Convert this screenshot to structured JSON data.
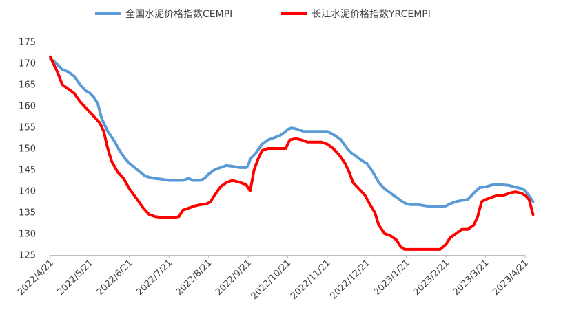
{
  "chart_data": {
    "type": "line",
    "title": "",
    "xlabel": "",
    "ylabel": "",
    "ylim": [
      125,
      175
    ],
    "yticks": [
      125,
      130,
      135,
      140,
      145,
      150,
      155,
      160,
      165,
      170,
      175
    ],
    "grid": false,
    "legend_position": "top",
    "categories": [
      "2022/4/21",
      "2022/5/21",
      "2022/6/21",
      "2022/7/21",
      "2022/8/21",
      "2022/9/21",
      "2022/10/21",
      "2022/11/21",
      "2022/12/21",
      "2023/1/21",
      "2023/2/21",
      "2023/3/21",
      "2023/4/21"
    ],
    "series": [
      {
        "name": "全国水泥价格指数CEMPI",
        "color": "#5b9bd5",
        "values": [
          [
            0.0,
            171.0
          ],
          [
            0.15,
            170.0
          ],
          [
            0.3,
            168.5
          ],
          [
            0.45,
            168.0
          ],
          [
            0.6,
            167.0
          ],
          [
            0.75,
            165.0
          ],
          [
            0.9,
            163.5
          ],
          [
            1.0,
            163.0
          ],
          [
            1.1,
            162.0
          ],
          [
            1.2,
            160.5
          ],
          [
            1.3,
            157.0
          ],
          [
            1.45,
            154.0
          ],
          [
            1.6,
            152.0
          ],
          [
            1.75,
            149.5
          ],
          [
            1.9,
            147.5
          ],
          [
            2.0,
            146.5
          ],
          [
            2.2,
            145.0
          ],
          [
            2.4,
            143.5
          ],
          [
            2.6,
            143.0
          ],
          [
            2.8,
            142.8
          ],
          [
            3.0,
            142.5
          ],
          [
            3.2,
            142.5
          ],
          [
            3.35,
            142.5
          ],
          [
            3.5,
            143.0
          ],
          [
            3.6,
            142.5
          ],
          [
            3.8,
            142.5
          ],
          [
            3.9,
            143.0
          ],
          [
            4.0,
            144.0
          ],
          [
            4.15,
            145.0
          ],
          [
            4.3,
            145.5
          ],
          [
            4.45,
            146.0
          ],
          [
            4.6,
            145.8
          ],
          [
            4.8,
            145.5
          ],
          [
            4.95,
            145.5
          ],
          [
            5.0,
            146.0
          ],
          [
            5.05,
            147.5
          ],
          [
            5.2,
            149.0
          ],
          [
            5.35,
            151.0
          ],
          [
            5.5,
            152.0
          ],
          [
            5.65,
            152.5
          ],
          [
            5.8,
            153.0
          ],
          [
            5.95,
            154.0
          ],
          [
            6.0,
            154.5
          ],
          [
            6.1,
            154.8
          ],
          [
            6.25,
            154.5
          ],
          [
            6.4,
            154.0
          ],
          [
            6.55,
            154.0
          ],
          [
            6.7,
            154.0
          ],
          [
            6.85,
            154.0
          ],
          [
            7.0,
            154.0
          ],
          [
            7.1,
            153.5
          ],
          [
            7.2,
            153.0
          ],
          [
            7.35,
            152.0
          ],
          [
            7.5,
            150.0
          ],
          [
            7.6,
            149.0
          ],
          [
            7.75,
            148.0
          ],
          [
            7.9,
            147.0
          ],
          [
            8.0,
            146.5
          ],
          [
            8.15,
            144.5
          ],
          [
            8.3,
            142.0
          ],
          [
            8.45,
            140.5
          ],
          [
            8.6,
            139.5
          ],
          [
            8.75,
            138.5
          ],
          [
            8.9,
            137.5
          ],
          [
            9.0,
            137.0
          ],
          [
            9.1,
            136.8
          ],
          [
            9.3,
            136.8
          ],
          [
            9.5,
            136.5
          ],
          [
            9.7,
            136.3
          ],
          [
            9.85,
            136.3
          ],
          [
            10.0,
            136.5
          ],
          [
            10.1,
            137.0
          ],
          [
            10.25,
            137.5
          ],
          [
            10.4,
            137.8
          ],
          [
            10.55,
            138.0
          ],
          [
            10.7,
            139.5
          ],
          [
            10.85,
            140.8
          ],
          [
            11.0,
            141.0
          ],
          [
            11.2,
            141.5
          ],
          [
            11.4,
            141.5
          ],
          [
            11.6,
            141.3
          ],
          [
            11.8,
            140.8
          ],
          [
            11.95,
            140.5
          ],
          [
            12.05,
            139.5
          ],
          [
            12.2,
            137.5
          ]
        ]
      },
      {
        "name": "长江水泥价格指数YRCEMPI",
        "color": "#ff0000",
        "values": [
          [
            0.0,
            171.5
          ],
          [
            0.1,
            169.5
          ],
          [
            0.2,
            167.5
          ],
          [
            0.3,
            165.0
          ],
          [
            0.45,
            164.0
          ],
          [
            0.6,
            163.0
          ],
          [
            0.75,
            161.0
          ],
          [
            0.9,
            159.5
          ],
          [
            1.0,
            158.5
          ],
          [
            1.1,
            157.5
          ],
          [
            1.25,
            156.0
          ],
          [
            1.35,
            154.0
          ],
          [
            1.45,
            150.0
          ],
          [
            1.55,
            147.0
          ],
          [
            1.7,
            144.5
          ],
          [
            1.85,
            143.0
          ],
          [
            2.0,
            140.5
          ],
          [
            2.2,
            138.0
          ],
          [
            2.35,
            136.0
          ],
          [
            2.5,
            134.5
          ],
          [
            2.65,
            134.0
          ],
          [
            2.8,
            133.8
          ],
          [
            3.0,
            133.8
          ],
          [
            3.15,
            133.8
          ],
          [
            3.25,
            134.0
          ],
          [
            3.35,
            135.5
          ],
          [
            3.5,
            136.0
          ],
          [
            3.65,
            136.5
          ],
          [
            3.8,
            136.8
          ],
          [
            3.95,
            137.0
          ],
          [
            4.05,
            137.5
          ],
          [
            4.15,
            139.0
          ],
          [
            4.3,
            141.0
          ],
          [
            4.45,
            142.0
          ],
          [
            4.6,
            142.5
          ],
          [
            4.8,
            142.0
          ],
          [
            4.95,
            141.5
          ],
          [
            5.05,
            140.0
          ],
          [
            5.15,
            145.0
          ],
          [
            5.25,
            147.5
          ],
          [
            5.35,
            149.5
          ],
          [
            5.5,
            150.0
          ],
          [
            5.65,
            150.0
          ],
          [
            5.8,
            150.0
          ],
          [
            5.95,
            150.0
          ],
          [
            6.05,
            152.0
          ],
          [
            6.2,
            152.3
          ],
          [
            6.35,
            152.0
          ],
          [
            6.5,
            151.5
          ],
          [
            6.65,
            151.5
          ],
          [
            6.85,
            151.5
          ],
          [
            7.0,
            151.0
          ],
          [
            7.15,
            150.0
          ],
          [
            7.3,
            148.5
          ],
          [
            7.45,
            146.5
          ],
          [
            7.55,
            144.5
          ],
          [
            7.65,
            142.0
          ],
          [
            7.8,
            140.5
          ],
          [
            7.95,
            139.0
          ],
          [
            8.1,
            136.5
          ],
          [
            8.2,
            135.0
          ],
          [
            8.3,
            132.0
          ],
          [
            8.45,
            130.0
          ],
          [
            8.6,
            129.5
          ],
          [
            8.75,
            128.5
          ],
          [
            8.85,
            127.0
          ],
          [
            8.95,
            126.3
          ],
          [
            9.1,
            126.3
          ],
          [
            9.3,
            126.3
          ],
          [
            9.5,
            126.3
          ],
          [
            9.7,
            126.3
          ],
          [
            9.85,
            126.3
          ],
          [
            10.0,
            127.5
          ],
          [
            10.1,
            129.0
          ],
          [
            10.25,
            130.0
          ],
          [
            10.4,
            131.0
          ],
          [
            10.55,
            131.0
          ],
          [
            10.7,
            132.0
          ],
          [
            10.8,
            134.0
          ],
          [
            10.9,
            137.5
          ],
          [
            11.0,
            138.0
          ],
          [
            11.15,
            138.5
          ],
          [
            11.3,
            139.0
          ],
          [
            11.45,
            139.0
          ],
          [
            11.6,
            139.5
          ],
          [
            11.75,
            139.8
          ],
          [
            11.9,
            139.5
          ],
          [
            12.0,
            139.0
          ],
          [
            12.1,
            138.0
          ],
          [
            12.2,
            134.5
          ]
        ]
      }
    ]
  }
}
